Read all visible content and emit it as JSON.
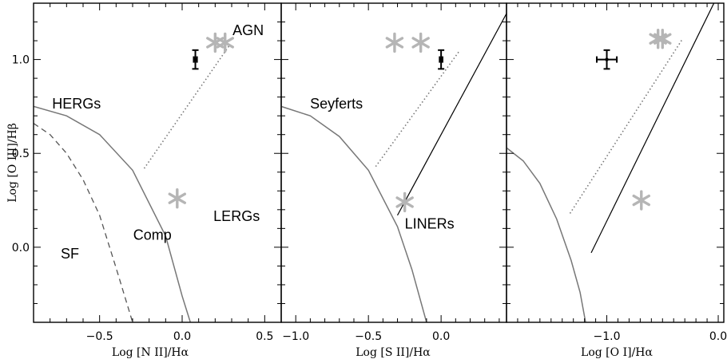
{
  "chart_data": [
    {
      "type": "scatter",
      "xlabel": "Log [N II]/Hα",
      "ylabel": "Log [O III]/Hβ",
      "xlim": [
        -0.9,
        0.6
      ],
      "ylim": [
        -0.4,
        1.3
      ],
      "xticks": [
        -0.5,
        0.0,
        0.5
      ],
      "xtick_labels": [
        "−0.5",
        "0.0",
        "0.5"
      ],
      "yticks": [
        0.0,
        0.5,
        1.0
      ],
      "ytick_labels": [
        "0.0",
        "0.5",
        "1.0"
      ],
      "region_labels": [
        {
          "text": "AGN",
          "x": 0.4,
          "y": 1.13
        },
        {
          "text": "HERGs",
          "x": -0.64,
          "y": 0.74
        },
        {
          "text": "LERGs",
          "x": 0.33,
          "y": 0.14
        },
        {
          "text": "Comp",
          "x": -0.18,
          "y": 0.04
        },
        {
          "text": "SF",
          "x": -0.68,
          "y": -0.06
        }
      ],
      "points": [
        {
          "x": 0.2,
          "y": 1.09
        },
        {
          "x": 0.26,
          "y": 1.09
        },
        {
          "x": -0.03,
          "y": 0.26
        }
      ],
      "error_points": [
        {
          "x": 0.08,
          "y": 1.0,
          "xerr": 0.01,
          "yerr": 0.05
        }
      ],
      "curves": [
        {
          "style": "solid",
          "x": [
            -0.9,
            -0.7,
            -0.5,
            -0.3,
            -0.1,
            0.0,
            0.05
          ],
          "y": [
            0.75,
            0.7,
            0.6,
            0.41,
            0.06,
            -0.26,
            -0.4
          ]
        },
        {
          "style": "dashed",
          "x": [
            -0.9,
            -0.8,
            -0.7,
            -0.6,
            -0.5,
            -0.4,
            -0.3
          ],
          "y": [
            0.66,
            0.6,
            0.5,
            0.36,
            0.17,
            -0.11,
            -0.4
          ]
        },
        {
          "style": "dotted",
          "x": [
            -0.23,
            0.29
          ],
          "y": [
            0.42,
            1.08
          ]
        }
      ]
    },
    {
      "type": "scatter",
      "xlabel": "Log [S II]/Hα",
      "xlim": [
        -1.1,
        0.45
      ],
      "ylim": [
        -0.4,
        1.3
      ],
      "xticks": [
        -1.0,
        -0.5,
        0.0
      ],
      "xtick_labels": [
        "−1.0",
        "−0.5",
        "0.0"
      ],
      "region_labels": [
        {
          "text": "Seyferts",
          "x": -0.72,
          "y": 0.74
        },
        {
          "text": "LINERs",
          "x": -0.08,
          "y": 0.1
        }
      ],
      "points": [
        {
          "x": -0.32,
          "y": 1.09
        },
        {
          "x": -0.14,
          "y": 1.09
        },
        {
          "x": -0.25,
          "y": 0.24
        }
      ],
      "error_points": [
        {
          "x": 0.0,
          "y": 1.0,
          "xerr": 0.01,
          "yerr": 0.05
        }
      ],
      "curves": [
        {
          "style": "solid",
          "x": [
            -1.1,
            -0.9,
            -0.7,
            -0.5,
            -0.3,
            -0.2,
            -0.1
          ],
          "y": [
            0.75,
            0.7,
            0.59,
            0.41,
            0.11,
            -0.12,
            -0.4
          ]
        },
        {
          "style": "solid",
          "x": [
            -0.3,
            0.53
          ],
          "y": [
            0.17,
            1.36
          ]
        },
        {
          "style": "dotted",
          "x": [
            -0.45,
            0.13
          ],
          "y": [
            0.43,
            1.05
          ]
        }
      ]
    },
    {
      "type": "scatter",
      "xlabel": "Log [O I]/Hα",
      "xlim": [
        -1.9,
        0.05
      ],
      "ylim": [
        -0.4,
        1.3
      ],
      "xticks": [
        -1.0,
        0.0
      ],
      "xtick_labels": [
        "−1.0",
        "0.0"
      ],
      "points": [
        {
          "x": -0.54,
          "y": 1.11
        },
        {
          "x": -0.5,
          "y": 1.11
        },
        {
          "x": -0.69,
          "y": 0.25
        }
      ],
      "error_points": [
        {
          "x": -1.0,
          "y": 1.0,
          "xerr": 0.09,
          "yerr": 0.05
        }
      ],
      "curves": [
        {
          "style": "solid",
          "x": [
            -1.9,
            -1.75,
            -1.6,
            -1.45,
            -1.32,
            -1.24,
            -1.19
          ],
          "y": [
            0.53,
            0.46,
            0.34,
            0.15,
            -0.07,
            -0.24,
            -0.4
          ]
        },
        {
          "style": "solid",
          "x": [
            -1.14,
            -0.03
          ],
          "y": [
            -0.03,
            1.31
          ]
        },
        {
          "style": "dotted",
          "x": [
            -1.33,
            -0.32
          ],
          "y": [
            0.18,
            1.11
          ]
        }
      ]
    }
  ]
}
